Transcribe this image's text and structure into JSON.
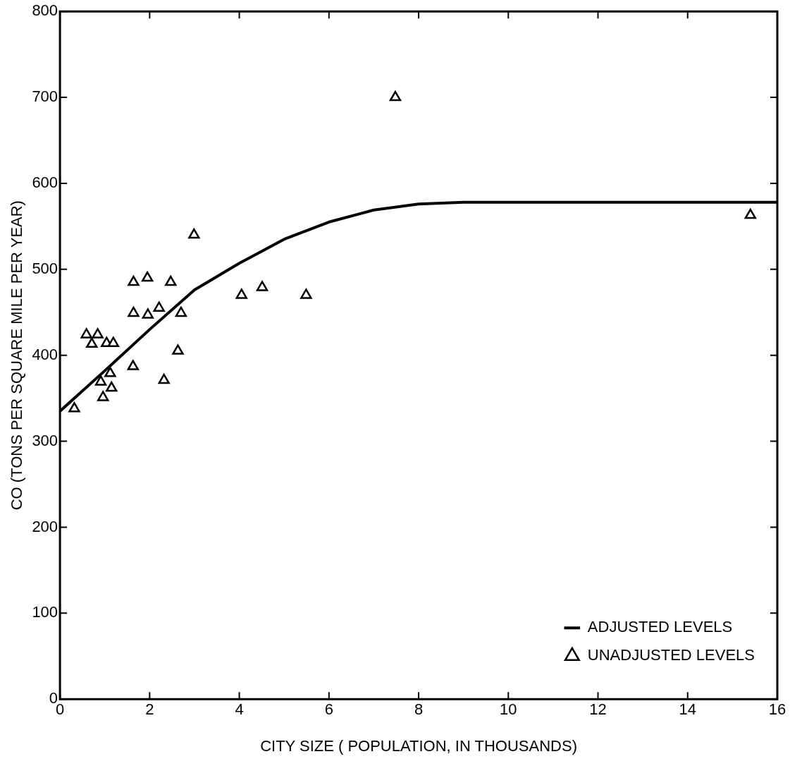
{
  "chart_data": {
    "type": "scatter",
    "xlabel": "CITY SIZE ( POPULATION, IN THOUSANDS)",
    "ylabel": "CO (TONS PER SQUARE MILE PER YEAR)",
    "xlim": [
      0,
      16
    ],
    "xticks": [
      0,
      2,
      4,
      6,
      8,
      10,
      12,
      14,
      16
    ],
    "ylim": [
      0,
      800
    ],
    "yticks": [
      0,
      100,
      200,
      300,
      400,
      500,
      600,
      700,
      800
    ],
    "grid": false,
    "legend": "bottom right",
    "series": [
      {
        "name": "ADJUSTED LEVELS",
        "type": "line",
        "color": "#000000",
        "marker": "none",
        "line_style": "solid",
        "x": [
          0,
          1,
          2,
          3,
          4,
          5,
          6,
          7,
          8,
          9,
          16
        ],
        "values": [
          335,
          382,
          430,
          476,
          507,
          535,
          555,
          569,
          576,
          578,
          578
        ]
      },
      {
        "name": "UNADJUSTED LEVELS",
        "type": "scatter",
        "color": "#000000",
        "marker": "triangle",
        "x": [
          0.32,
          0.59,
          0.84,
          0.71,
          1.04,
          1.19,
          1.12,
          0.91,
          1.15,
          0.96,
          1.63,
          1.64,
          1.95,
          2.47,
          1.64,
          1.96,
          2.21,
          2.7,
          2.63,
          2.32,
          2.99,
          4.05,
          4.51,
          5.49,
          7.48,
          15.4
        ],
        "values": [
          338,
          424,
          424,
          413,
          414,
          414,
          379,
          369,
          362,
          351,
          387,
          485,
          490,
          485,
          449,
          447,
          455,
          449,
          405,
          371,
          540,
          470,
          479,
          470,
          700,
          563
        ]
      }
    ]
  }
}
